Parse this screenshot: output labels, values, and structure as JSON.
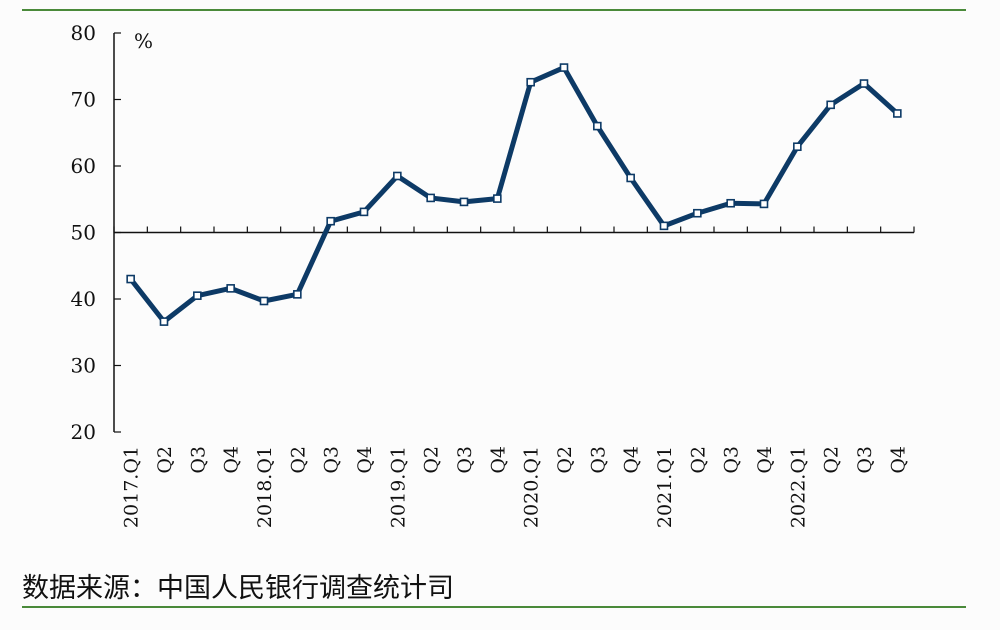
{
  "chart_data": {
    "type": "line",
    "title": "",
    "ylabel": "%",
    "xlabel": "",
    "ylim": [
      20,
      80
    ],
    "yticks": [
      20,
      30,
      40,
      50,
      60,
      70,
      80
    ],
    "baseline": 50,
    "grid": false,
    "categories": [
      "2017.Q1",
      "Q2",
      "Q3",
      "Q4",
      "2018.Q1",
      "Q2",
      "Q3",
      "Q4",
      "2019.Q1",
      "Q2",
      "Q3",
      "Q4",
      "2020.Q1",
      "Q2",
      "Q3",
      "Q4",
      "2021.Q1",
      "Q2",
      "Q3",
      "Q4",
      "2022.Q1",
      "Q2",
      "Q3",
      "Q4"
    ],
    "series": [
      {
        "values": [
          43.0,
          36.6,
          40.5,
          41.6,
          39.7,
          40.7,
          51.7,
          53.1,
          58.5,
          55.2,
          54.6,
          55.1,
          72.6,
          74.8,
          66.0,
          58.2,
          51.0,
          52.9,
          54.4,
          54.3,
          62.9,
          69.2,
          72.4,
          67.9
        ],
        "color": "#0d3a66"
      }
    ]
  },
  "source_text": "数据来源：中国人民银行调查统计司"
}
